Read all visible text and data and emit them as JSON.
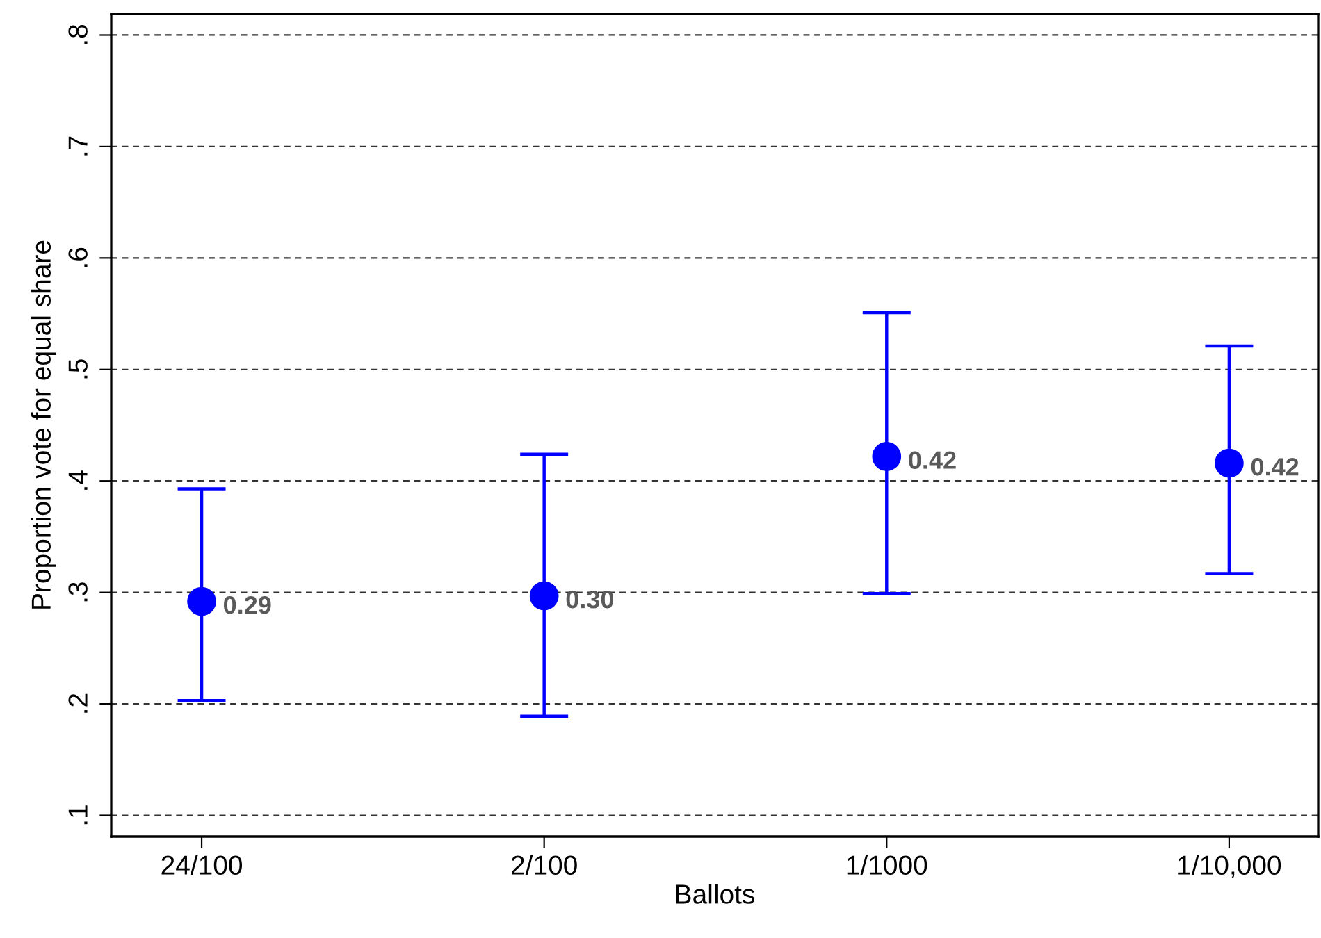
{
  "chart_data": {
    "type": "scatter",
    "xlabel": "Ballots",
    "ylabel": "Proportion vote for equal share",
    "categories": [
      "24/100",
      "2/100",
      "1/1000",
      "1/10,000"
    ],
    "values": [
      0.292,
      0.297,
      0.422,
      0.416
    ],
    "errors": [
      [
        0.203,
        0.393
      ],
      [
        0.189,
        0.424
      ],
      [
        0.299,
        0.551
      ],
      [
        0.317,
        0.521
      ]
    ],
    "value_labels": [
      "0.29",
      "0.30",
      "0.42",
      "0.42"
    ],
    "color": "#0000ff",
    "marker": "circle",
    "ylim": [
      0.081,
      0.819
    ],
    "yticks": [
      {
        "value": 0.1,
        "label": ".1"
      },
      {
        "value": 0.2,
        "label": ".2"
      },
      {
        "value": 0.3,
        "label": ".3"
      },
      {
        "value": 0.4,
        "label": ".4"
      },
      {
        "value": 0.5,
        "label": ".5"
      },
      {
        "value": 0.6,
        "label": ".6"
      },
      {
        "value": 0.7,
        "label": ".7"
      },
      {
        "value": 0.8,
        "label": ".8"
      }
    ],
    "grid": "y"
  }
}
